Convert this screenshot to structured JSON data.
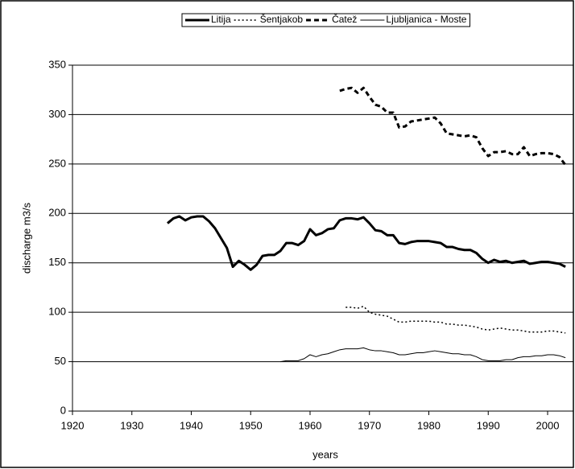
{
  "chart_data": {
    "type": "line",
    "xlabel": "years",
    "ylabel": "discharge m3/s",
    "x": [
      1936,
      1937,
      1938,
      1939,
      1940,
      1941,
      1942,
      1943,
      1944,
      1945,
      1946,
      1947,
      1948,
      1949,
      1950,
      1951,
      1952,
      1953,
      1954,
      1955,
      1956,
      1957,
      1958,
      1959,
      1960,
      1961,
      1962,
      1963,
      1964,
      1965,
      1966,
      1967,
      1968,
      1969,
      1970,
      1971,
      1972,
      1973,
      1974,
      1975,
      1976,
      1977,
      1978,
      1979,
      1980,
      1981,
      1982,
      1983,
      1984,
      1985,
      1986,
      1987,
      1988,
      1989,
      1990,
      1991,
      1992,
      1993,
      1994,
      1995,
      1996,
      1997,
      1998,
      1999,
      2000,
      2001,
      2002,
      2003
    ],
    "series": [
      {
        "name": "Litija",
        "color": "#000000",
        "width": 3,
        "dash": "none",
        "values": [
          190,
          195,
          197,
          193,
          196,
          197,
          197,
          192,
          185,
          175,
          165,
          146,
          152,
          148,
          143,
          148,
          157,
          158,
          158,
          162,
          170,
          170,
          168,
          172,
          184,
          178,
          180,
          184,
          185,
          193,
          195,
          195,
          194,
          196,
          190,
          183,
          182,
          178,
          178,
          170,
          169,
          171,
          172,
          172,
          172,
          171,
          170,
          166,
          166,
          164,
          163,
          163,
          160,
          154,
          150,
          153,
          151,
          152,
          150,
          151,
          152,
          149,
          150,
          151,
          151,
          150,
          149,
          146
        ]
      },
      {
        "name": "Šentjakob",
        "color": "#000000",
        "width": 1.5,
        "dash": "2,3",
        "values": [
          null,
          null,
          null,
          null,
          null,
          null,
          null,
          null,
          null,
          null,
          null,
          null,
          null,
          null,
          null,
          null,
          null,
          null,
          null,
          null,
          null,
          null,
          null,
          null,
          null,
          null,
          null,
          null,
          null,
          null,
          105,
          105,
          104,
          106,
          100,
          98,
          97,
          96,
          93,
          90,
          90,
          91,
          91,
          91,
          91,
          90,
          90,
          88,
          88,
          87,
          87,
          86,
          85,
          83,
          82,
          83,
          84,
          83,
          82,
          82,
          81,
          80,
          80,
          80,
          81,
          81,
          80,
          79
        ]
      },
      {
        "name": "Čatež",
        "color": "#000000",
        "width": 3,
        "dash": "6,4",
        "values": [
          null,
          null,
          null,
          null,
          null,
          null,
          null,
          null,
          null,
          null,
          null,
          null,
          null,
          null,
          null,
          null,
          null,
          null,
          null,
          null,
          null,
          null,
          null,
          null,
          null,
          null,
          null,
          null,
          null,
          324,
          326,
          327,
          322,
          327,
          318,
          310,
          308,
          302,
          302,
          287,
          288,
          293,
          294,
          295,
          296,
          297,
          291,
          281,
          280,
          279,
          278,
          279,
          277,
          266,
          258,
          262,
          262,
          263,
          260,
          260,
          267,
          258,
          260,
          261,
          261,
          260,
          257,
          249
        ]
      },
      {
        "name": "Ljubljanica - Moste",
        "color": "#000000",
        "width": 1,
        "dash": "none",
        "values": [
          null,
          null,
          null,
          null,
          null,
          null,
          null,
          null,
          null,
          null,
          null,
          null,
          null,
          null,
          null,
          null,
          null,
          null,
          null,
          50,
          51,
          51,
          51,
          53,
          57,
          55,
          57,
          58,
          60,
          62,
          63,
          63,
          63,
          64,
          62,
          61,
          61,
          60,
          59,
          57,
          57,
          58,
          59,
          59,
          60,
          61,
          60,
          59,
          58,
          58,
          57,
          57,
          55,
          52,
          51,
          51,
          51,
          52,
          52,
          54,
          55,
          55,
          56,
          56,
          57,
          57,
          56,
          54
        ]
      }
    ],
    "xlim": [
      1920,
      2004
    ],
    "xticks": [
      1920,
      1930,
      1940,
      1950,
      1960,
      1970,
      1980,
      1990,
      2000
    ],
    "ylim": [
      0,
      350
    ],
    "yticks": [
      0,
      50,
      100,
      150,
      200,
      250,
      300,
      350
    ],
    "grid": true,
    "legend": "top"
  }
}
